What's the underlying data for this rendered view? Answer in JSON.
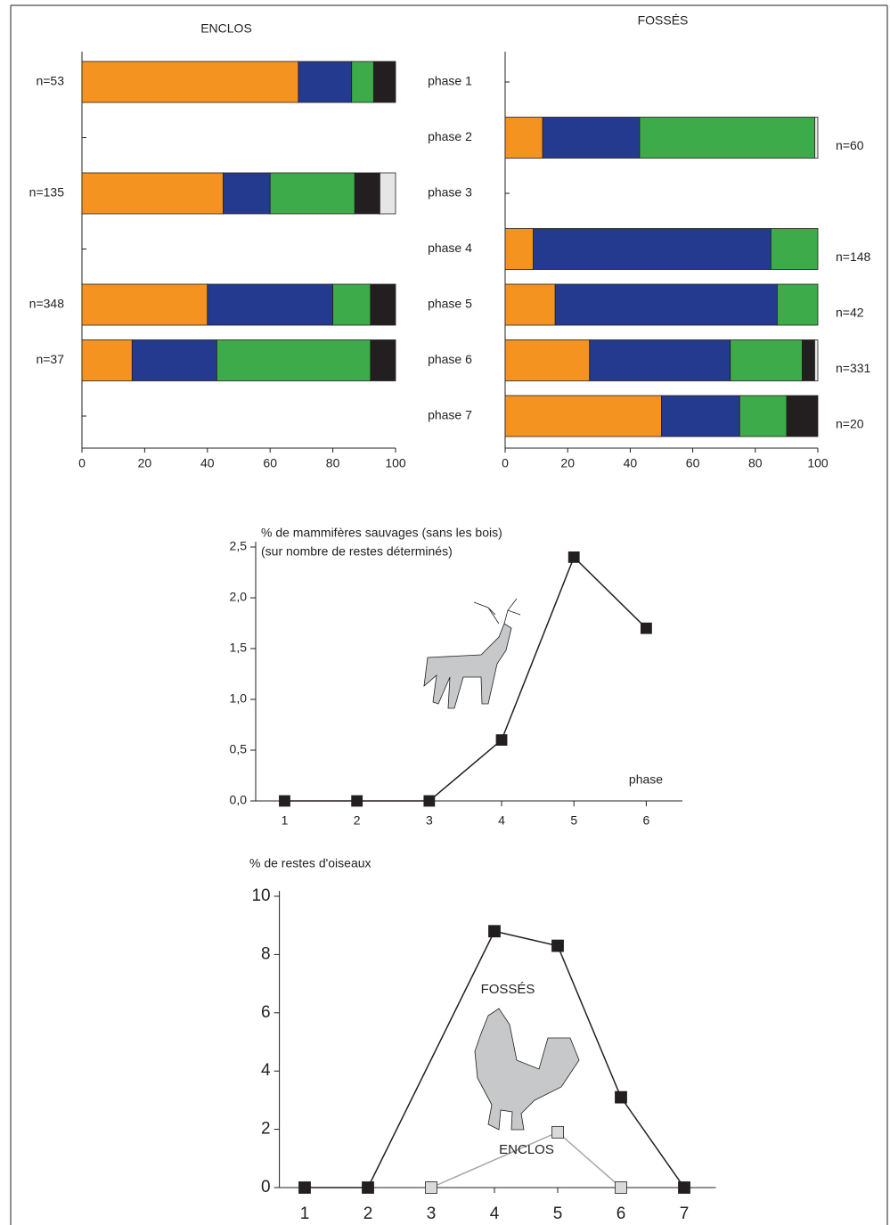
{
  "chart_data": [
    {
      "type": "barh-stacked",
      "title": "ENCLOS",
      "categories": [
        "phase 1",
        "phase 2",
        "phase 3",
        "phase 4",
        "phase 5",
        "phase 6",
        "phase 7"
      ],
      "n_labels": [
        "n=53",
        null,
        "n=135",
        null,
        "n=348",
        "n=37",
        null
      ],
      "series": [
        {
          "color": "#f4931f",
          "values": [
            69,
            null,
            45,
            null,
            40,
            16,
            null
          ]
        },
        {
          "color": "#233a8f",
          "values": [
            17,
            null,
            15,
            null,
            40,
            27,
            null
          ]
        },
        {
          "color": "#3dab4a",
          "values": [
            7,
            null,
            27,
            null,
            12,
            49,
            null
          ]
        },
        {
          "color": "#231f20",
          "values": [
            7,
            null,
            8,
            null,
            8,
            8,
            null
          ]
        },
        {
          "color": "#e6e6e6",
          "values": [
            null,
            null,
            5,
            null,
            null,
            null,
            null
          ]
        }
      ],
      "xlim": [
        0,
        100
      ],
      "xticks": [
        0,
        20,
        40,
        60,
        80,
        100
      ]
    },
    {
      "type": "barh-stacked",
      "title": "FOSSÉS",
      "n_labels": [
        null,
        "n=60",
        null,
        "n=148",
        "n=42",
        "n=331",
        "n=20"
      ],
      "series": [
        {
          "color": "#f4931f",
          "values": [
            null,
            12,
            null,
            9,
            16,
            27,
            50
          ]
        },
        {
          "color": "#233a8f",
          "values": [
            null,
            31,
            null,
            76,
            71,
            45,
            25
          ]
        },
        {
          "color": "#3dab4a",
          "values": [
            null,
            56,
            null,
            15,
            13,
            23,
            15
          ]
        },
        {
          "color": "#231f20",
          "values": [
            null,
            null,
            null,
            null,
            null,
            4,
            10
          ]
        },
        {
          "color": "#e6e6e6",
          "values": [
            null,
            1,
            null,
            null,
            null,
            1,
            null
          ]
        }
      ],
      "xlim": [
        0,
        100
      ],
      "xticks": [
        0,
        20,
        40,
        60,
        80,
        100
      ]
    },
    {
      "type": "line",
      "title": "% de mammifères sauvages (sans les bois)",
      "subtitle": "(sur nombre de restes déterminés)",
      "x_label": "phase",
      "x": [
        1,
        2,
        3,
        4,
        5,
        6
      ],
      "values": [
        0,
        0,
        0,
        0.6,
        2.4,
        1.7
      ],
      "color": "#231f20",
      "xlim": [
        0.6,
        6.5
      ],
      "ylim": [
        0,
        2.5
      ],
      "xticks": [
        1,
        2,
        3,
        4,
        5,
        6
      ],
      "yticks": [
        {
          "value": 0,
          "label": "0,0"
        },
        {
          "value": 0.5,
          "label": "0,5"
        },
        {
          "value": 1,
          "label": "1,0"
        },
        {
          "value": 1.5,
          "label": "1,5"
        },
        {
          "value": 2,
          "label": "2,0"
        },
        {
          "value": 2.5,
          "label": "2,5"
        }
      ]
    },
    {
      "type": "line",
      "title": "% de restes d'oiseaux",
      "series": [
        {
          "name": "FOSSÉS",
          "color": "#231f20",
          "marker_color": "#231f20",
          "x": [
            1,
            2,
            4,
            5,
            6,
            7
          ],
          "values": [
            0,
            0,
            8.8,
            8.3,
            3.1,
            0
          ]
        },
        {
          "name": "ENCLOS",
          "color": "#a7a9ac",
          "marker_color": "#d9d9d9",
          "x": [
            3,
            5,
            6
          ],
          "values": [
            0,
            1.9,
            0
          ]
        }
      ],
      "xlim": [
        0.6,
        7.5
      ],
      "ylim": [
        0,
        10
      ],
      "xticks": [
        1,
        2,
        3,
        4,
        5,
        6,
        7
      ],
      "yticks": [
        0,
        2,
        4,
        6,
        8,
        10
      ]
    }
  ]
}
